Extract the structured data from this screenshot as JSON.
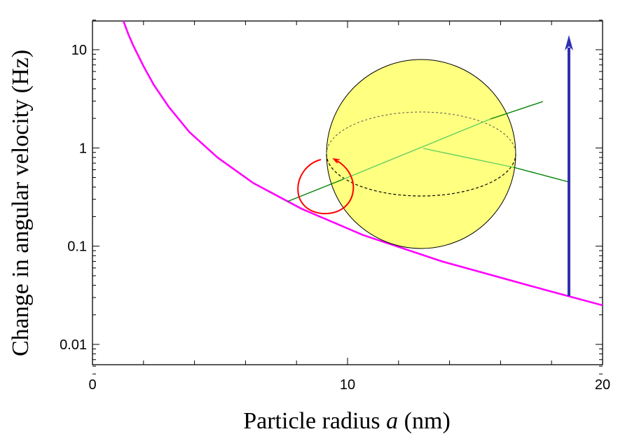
{
  "chart_data": {
    "type": "line",
    "xlabel": "Particle radius",
    "xlabel_var": "a",
    "xlabel_unit": "(nm)",
    "ylabel": "Change in angular velocity (Hz)",
    "xlim": [
      0,
      20
    ],
    "ylim": [
      0.005,
      20
    ],
    "yscale": "log",
    "grid": false,
    "x_ticks": [
      {
        "value": 0,
        "label": "0"
      },
      {
        "value": 10,
        "label": "10"
      },
      {
        "value": 20,
        "label": "20"
      }
    ],
    "x_minor_ticks": [
      2,
      4,
      6,
      8,
      12,
      14,
      16,
      18
    ],
    "y_ticks": [
      {
        "value": 0.01,
        "label": "0.01"
      },
      {
        "value": 0.1,
        "label": "0.1"
      },
      {
        "value": 1,
        "label": "1"
      },
      {
        "value": 10,
        "label": "10"
      }
    ],
    "series": [
      {
        "color": "#ff00ff",
        "x": [
          1.2,
          1.4,
          1.6,
          2.0,
          2.4,
          3.0,
          3.8,
          4.9,
          6.3,
          8.2,
          10.6,
          13.7,
          17.9,
          20.0
        ],
        "y": [
          20,
          14.5,
          11.0,
          6.8,
          4.4,
          2.6,
          1.45,
          0.8,
          0.44,
          0.24,
          0.13,
          0.07,
          0.035,
          0.025
        ]
      }
    ],
    "illustration": {
      "sphere_color": "#ffff80",
      "rotation_arrow_color": "#ff0000",
      "axis_line_color": "#008000",
      "vector_color": "#3030b0"
    }
  }
}
